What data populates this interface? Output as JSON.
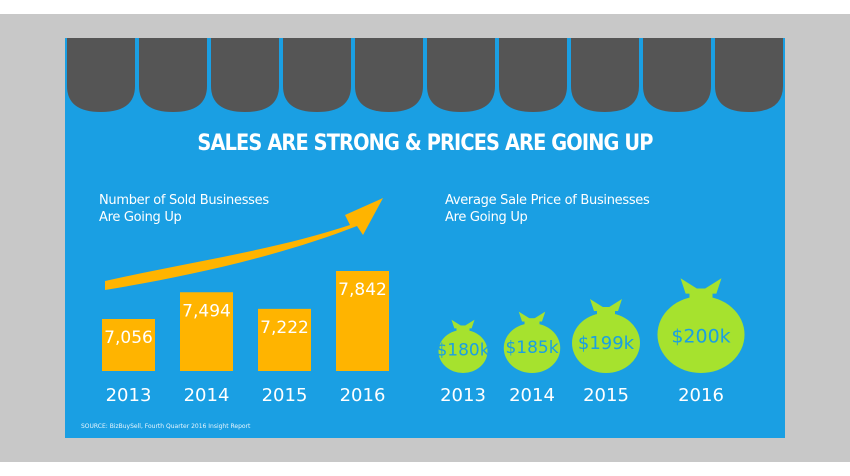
{
  "headline": "SALES ARE STRONG & PRICES ARE GOING UP",
  "source": "SOURCE: BizBuySell, Fourth Quarter 2016 Insight Report",
  "colors": {
    "background": "#1a9fe3",
    "awning": "#555555",
    "bar": "#ffb400",
    "arrow": "#ffb400",
    "moneybag": "#a6e22e",
    "bag_label": "#1a9fe3",
    "text": "#ffffff"
  },
  "chart_data": [
    {
      "type": "bar",
      "title_lines": [
        "Number of Sold Businesses",
        "Are Going Up"
      ],
      "categories": [
        "2013",
        "2014",
        "2015",
        "2016"
      ],
      "values": [
        7056,
        7494,
        7222,
        7842
      ],
      "value_labels": [
        "7,056",
        "7,494",
        "7,222",
        "7,842"
      ],
      "ylim": [
        6500,
        8000
      ],
      "grid": false,
      "decoration": "upward-arrow"
    },
    {
      "type": "pictograph",
      "title_lines": [
        "Average Sale Price of Businesses",
        "Are Going Up"
      ],
      "categories": [
        "2013",
        "2014",
        "2015",
        "2016"
      ],
      "values": [
        180,
        185,
        199,
        200
      ],
      "value_labels": [
        "$180k",
        "$185k",
        "$199k",
        "$200k"
      ],
      "unit": "thousand USD",
      "icon": "moneybag-icon"
    }
  ]
}
